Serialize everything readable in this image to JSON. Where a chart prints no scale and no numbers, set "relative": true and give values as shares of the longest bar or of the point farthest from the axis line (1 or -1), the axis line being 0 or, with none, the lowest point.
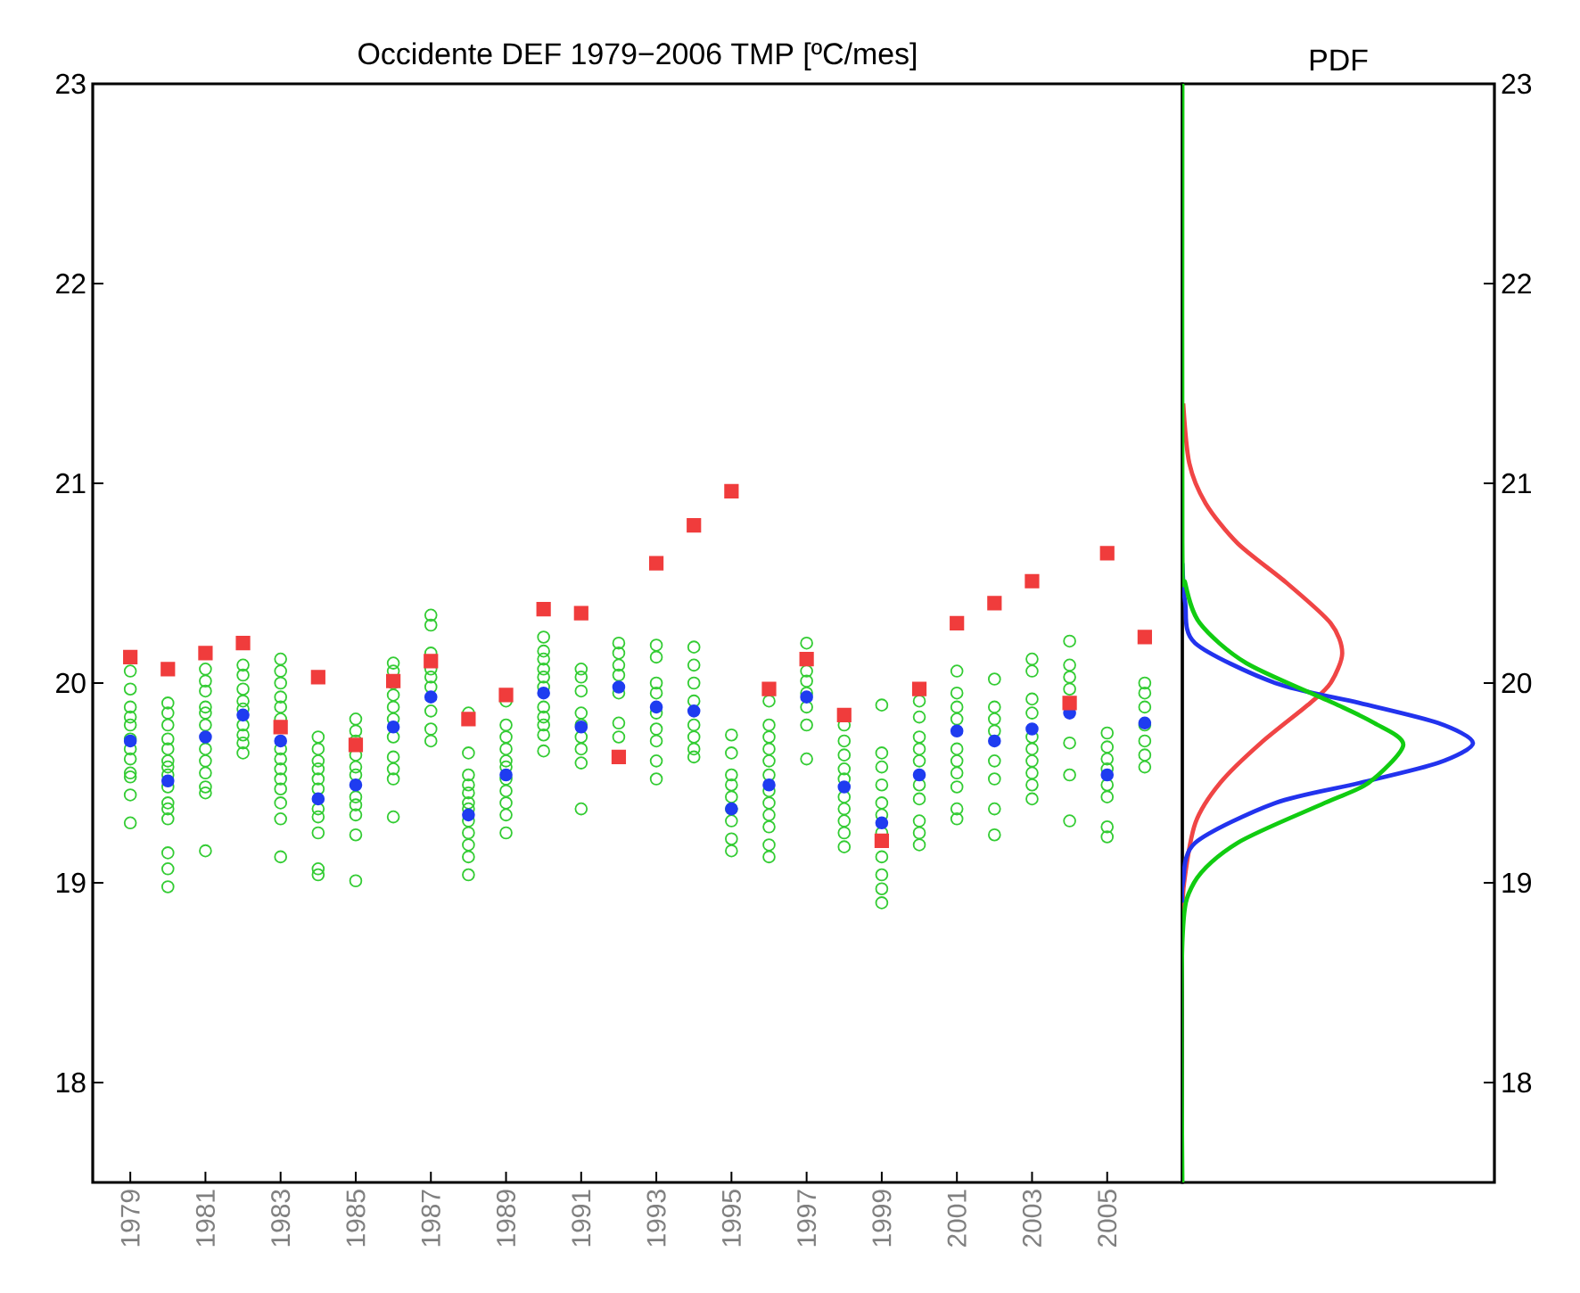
{
  "chart_data": [
    {
      "type": "scatter",
      "title": "Occidente DEF 1979−2006 TMP [ºC/mes]",
      "xlim": [
        1978,
        2007
      ],
      "ylim": [
        17.5,
        23
      ],
      "xticks": [
        1979,
        1981,
        1983,
        1985,
        1987,
        1989,
        1991,
        1993,
        1995,
        1997,
        1999,
        2001,
        2003,
        2005
      ],
      "yticks": [
        18,
        19,
        20,
        21,
        22,
        23
      ],
      "series": [
        {
          "color": "#33cc33",
          "marker": "circle",
          "x": [
            1979,
            1979,
            1979,
            1979,
            1979,
            1979,
            1979,
            1979,
            1979,
            1979,
            1979,
            1979,
            1980,
            1980,
            1980,
            1980,
            1980,
            1980,
            1980,
            1980,
            1980,
            1980,
            1980,
            1980,
            1980,
            1980,
            1980,
            1981,
            1981,
            1981,
            1981,
            1981,
            1981,
            1981,
            1981,
            1981,
            1981,
            1981,
            1981,
            1982,
            1982,
            1982,
            1982,
            1982,
            1982,
            1982,
            1982,
            1982,
            1983,
            1983,
            1983,
            1983,
            1983,
            1983,
            1983,
            1983,
            1983,
            1983,
            1983,
            1983,
            1983,
            1983,
            1984,
            1984,
            1984,
            1984,
            1984,
            1984,
            1984,
            1984,
            1984,
            1984,
            1984,
            1985,
            1985,
            1985,
            1985,
            1985,
            1985,
            1985,
            1985,
            1985,
            1985,
            1985,
            1986,
            1986,
            1986,
            1986,
            1986,
            1986,
            1986,
            1986,
            1986,
            1986,
            1986,
            1987,
            1987,
            1987,
            1987,
            1987,
            1987,
            1987,
            1987,
            1987,
            1988,
            1988,
            1988,
            1988,
            1988,
            1988,
            1988,
            1988,
            1988,
            1988,
            1988,
            1988,
            1989,
            1989,
            1989,
            1989,
            1989,
            1989,
            1989,
            1989,
            1989,
            1989,
            1989,
            1990,
            1990,
            1990,
            1990,
            1990,
            1990,
            1990,
            1990,
            1990,
            1990,
            1990,
            1991,
            1991,
            1991,
            1991,
            1991,
            1991,
            1991,
            1991,
            1991,
            1992,
            1992,
            1992,
            1992,
            1992,
            1992,
            1992,
            1993,
            1993,
            1993,
            1993,
            1993,
            1993,
            1993,
            1993,
            1993,
            1994,
            1994,
            1994,
            1994,
            1994,
            1994,
            1994,
            1994,
            1995,
            1995,
            1995,
            1995,
            1995,
            1995,
            1995,
            1995,
            1995,
            1996,
            1996,
            1996,
            1996,
            1996,
            1996,
            1996,
            1996,
            1996,
            1996,
            1996,
            1996,
            1997,
            1997,
            1997,
            1997,
            1997,
            1997,
            1997,
            1998,
            1998,
            1998,
            1998,
            1998,
            1998,
            1998,
            1998,
            1998,
            1998,
            1999,
            1999,
            1999,
            1999,
            1999,
            1999,
            1999,
            1999,
            1999,
            1999,
            1999,
            2000,
            2000,
            2000,
            2000,
            2000,
            2000,
            2000,
            2000,
            2000,
            2000,
            2001,
            2001,
            2001,
            2001,
            2001,
            2001,
            2001,
            2001,
            2001,
            2001,
            2002,
            2002,
            2002,
            2002,
            2002,
            2002,
            2002,
            2002,
            2003,
            2003,
            2003,
            2003,
            2003,
            2003,
            2003,
            2003,
            2003,
            2003,
            2004,
            2004,
            2004,
            2004,
            2004,
            2004,
            2004,
            2005,
            2005,
            2005,
            2005,
            2005,
            2005,
            2005,
            2005,
            2006,
            2006,
            2006,
            2006,
            2006,
            2006,
            2006
          ],
          "values": [
            20.06,
            19.97,
            19.88,
            19.83,
            19.79,
            19.72,
            19.67,
            19.62,
            19.55,
            19.53,
            19.44,
            19.3,
            19.9,
            19.85,
            19.79,
            19.72,
            19.67,
            19.61,
            19.58,
            19.54,
            19.48,
            19.4,
            19.37,
            19.32,
            19.15,
            19.07,
            18.98,
            20.07,
            20.01,
            19.96,
            19.88,
            19.85,
            19.79,
            19.67,
            19.61,
            19.55,
            19.48,
            19.45,
            19.16,
            20.09,
            20.04,
            19.97,
            19.91,
            19.87,
            19.79,
            19.74,
            19.7,
            19.65,
            20.12,
            20.06,
            20.0,
            19.93,
            19.88,
            19.82,
            19.67,
            19.62,
            19.57,
            19.52,
            19.47,
            19.4,
            19.32,
            19.13,
            19.73,
            19.67,
            19.61,
            19.57,
            19.52,
            19.47,
            19.37,
            19.33,
            19.25,
            19.07,
            19.04,
            19.82,
            19.76,
            19.71,
            19.64,
            19.58,
            19.54,
            19.43,
            19.39,
            19.34,
            19.24,
            19.01,
            20.1,
            20.06,
            20.0,
            19.94,
            19.88,
            19.82,
            19.73,
            19.63,
            19.57,
            19.52,
            19.33,
            20.34,
            20.29,
            20.15,
            20.07,
            20.03,
            19.98,
            19.86,
            19.77,
            19.71,
            19.85,
            19.65,
            19.54,
            19.49,
            19.45,
            19.4,
            19.37,
            19.31,
            19.25,
            19.19,
            19.13,
            19.04,
            19.91,
            19.79,
            19.73,
            19.67,
            19.61,
            19.58,
            19.52,
            19.46,
            19.4,
            19.34,
            19.25,
            20.23,
            20.16,
            20.12,
            20.07,
            20.03,
            19.98,
            19.88,
            19.83,
            19.79,
            19.74,
            19.66,
            20.07,
            20.03,
            19.96,
            19.85,
            19.79,
            19.73,
            19.67,
            19.6,
            19.37,
            20.2,
            20.15,
            20.09,
            20.04,
            19.95,
            19.8,
            19.73,
            20.19,
            20.13,
            20.0,
            19.95,
            19.85,
            19.77,
            19.71,
            19.61,
            19.52,
            20.18,
            20.09,
            20.0,
            19.91,
            19.79,
            19.73,
            19.67,
            19.63,
            19.74,
            19.65,
            19.54,
            19.49,
            19.43,
            19.37,
            19.31,
            19.22,
            19.16,
            19.91,
            19.79,
            19.73,
            19.67,
            19.61,
            19.54,
            19.46,
            19.4,
            19.34,
            19.28,
            19.19,
            19.13,
            20.2,
            20.06,
            20.01,
            19.95,
            19.88,
            19.79,
            19.62,
            19.79,
            19.71,
            19.64,
            19.57,
            19.52,
            19.43,
            19.37,
            19.31,
            19.25,
            19.18,
            19.89,
            19.65,
            19.58,
            19.49,
            19.4,
            19.34,
            19.25,
            19.13,
            19.04,
            18.97,
            18.9,
            19.91,
            19.83,
            19.73,
            19.67,
            19.61,
            19.49,
            19.42,
            19.31,
            19.25,
            19.19,
            20.06,
            19.95,
            19.88,
            19.82,
            19.67,
            19.61,
            19.55,
            19.48,
            19.37,
            19.32,
            20.02,
            19.88,
            19.82,
            19.76,
            19.61,
            19.52,
            19.37,
            19.24,
            20.12,
            20.06,
            19.92,
            19.85,
            19.73,
            19.67,
            19.61,
            19.55,
            19.49,
            19.42,
            20.21,
            20.09,
            20.03,
            19.97,
            19.7,
            19.54,
            19.31,
            19.75,
            19.68,
            19.62,
            19.57,
            19.49,
            19.43,
            19.28,
            19.23,
            20.0,
            19.95,
            19.88,
            19.79,
            19.71,
            19.64,
            19.58
          ]
        },
        {
          "color": "#1f3cf0",
          "marker": "circle",
          "x": [
            1979,
            1980,
            1981,
            1982,
            1983,
            1984,
            1985,
            1986,
            1987,
            1988,
            1989,
            1990,
            1991,
            1992,
            1993,
            1994,
            1995,
            1996,
            1997,
            1998,
            1999,
            2000,
            2001,
            2002,
            2003,
            2004,
            2005,
            2006
          ],
          "values": [
            19.71,
            19.51,
            19.73,
            19.84,
            19.71,
            19.42,
            19.49,
            19.78,
            19.93,
            19.34,
            19.54,
            19.95,
            19.78,
            19.98,
            19.88,
            19.86,
            19.37,
            19.49,
            19.93,
            19.48,
            19.3,
            19.54,
            19.76,
            19.71,
            19.77,
            19.85,
            19.54,
            19.8
          ]
        },
        {
          "color": "#f03c3c",
          "marker": "square",
          "x": [
            1979,
            1980,
            1981,
            1982,
            1983,
            1984,
            1985,
            1986,
            1987,
            1988,
            1989,
            1990,
            1991,
            1992,
            1993,
            1994,
            1995,
            1996,
            1997,
            1998,
            1999,
            2000,
            2001,
            2002,
            2003,
            2004,
            2005,
            2006
          ],
          "values": [
            20.13,
            20.07,
            20.15,
            20.2,
            19.78,
            20.03,
            19.69,
            20.01,
            20.11,
            19.82,
            19.94,
            20.37,
            20.35,
            19.63,
            20.6,
            20.79,
            20.96,
            19.97,
            20.12,
            19.84,
            19.21,
            19.97,
            20.3,
            20.4,
            20.51,
            19.9,
            20.65,
            20.23
          ]
        }
      ]
    },
    {
      "type": "line",
      "title": "PDF",
      "orientation": "horizontal",
      "relative": true,
      "ylim": [
        17.5,
        23
      ],
      "yticks": [
        18,
        19,
        20,
        21,
        22,
        23
      ],
      "tick_labels": "y",
      "series": [
        {
          "color": "#f04545",
          "x": [
            18.8,
            19.0,
            19.3,
            19.5,
            19.7,
            19.9,
            20.0,
            20.15,
            20.3,
            20.5,
            20.7,
            20.9,
            21.1,
            21.4
          ],
          "values": [
            0,
            0.006,
            0.045,
            0.13,
            0.27,
            0.44,
            0.51,
            0.55,
            0.51,
            0.36,
            0.19,
            0.08,
            0.024,
            0.003
          ]
        },
        {
          "color": "#2233ee",
          "x": [
            18.9,
            19.0,
            19.2,
            19.4,
            19.5,
            19.6,
            19.7,
            19.8,
            19.9,
            20.0,
            20.2,
            20.4,
            20.6
          ],
          "values": [
            0,
            0.002,
            0.044,
            0.32,
            0.61,
            0.88,
            1,
            0.88,
            0.61,
            0.32,
            0.044,
            0.01,
            0
          ]
        },
        {
          "color": "#11cc11",
          "x": [
            17.5,
            18.7,
            19.0,
            19.2,
            19.4,
            19.5,
            19.69,
            19.8,
            19.9,
            20.1,
            20.3,
            20.5,
            20.7,
            23
          ],
          "values": [
            0,
            0,
            0.04,
            0.19,
            0.49,
            0.64,
            0.76,
            0.66,
            0.52,
            0.22,
            0.06,
            0.01,
            0,
            0
          ]
        }
      ]
    }
  ]
}
